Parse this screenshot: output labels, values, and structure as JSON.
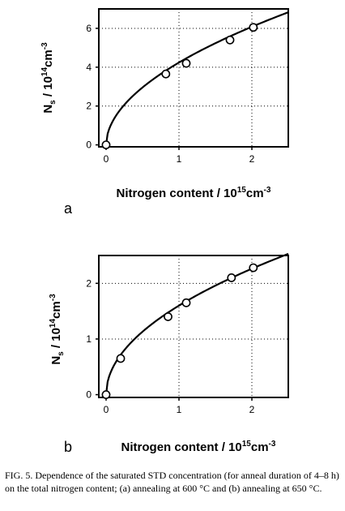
{
  "chart_data": [
    {
      "type": "scatter",
      "panel_label": "a",
      "xlabel": {
        "main": "Nitrogen content / 10",
        "exp": "15",
        "unit": "cm",
        "unit_exp": "-3"
      },
      "ylabel": {
        "main": "N",
        "sub": "s",
        "mid": " / 10",
        "exp": "14",
        "unit": "cm",
        "unit_exp": "-3"
      },
      "xlim": [
        -0.1,
        2.5
      ],
      "ylim": [
        -0.1,
        7.0
      ],
      "xticks": [
        0,
        1,
        2
      ],
      "yticks": [
        0,
        2,
        4,
        6
      ],
      "points": [
        {
          "x": 0.0,
          "y": 0.0
        },
        {
          "x": 0.82,
          "y": 3.65
        },
        {
          "x": 1.1,
          "y": 4.2
        },
        {
          "x": 1.7,
          "y": 5.4
        },
        {
          "x": 2.02,
          "y": 6.05
        }
      ],
      "fit_curve": {
        "form": "power",
        "a": 4.24,
        "p": 0.52,
        "x_max": 2.5
      }
    },
    {
      "type": "scatter",
      "panel_label": "b",
      "xlabel": {
        "main": "Nitrogen content / 10",
        "exp": "15",
        "unit": "cm",
        "unit_exp": "-3"
      },
      "ylabel": {
        "main": "N",
        "sub": "s",
        "mid": " / 10",
        "exp": "14",
        "unit": "cm",
        "unit_exp": "-3"
      },
      "xlim": [
        -0.1,
        2.5
      ],
      "ylim": [
        -0.05,
        2.5
      ],
      "xticks": [
        0,
        1,
        2
      ],
      "yticks": [
        0,
        1,
        2
      ],
      "points": [
        {
          "x": 0.0,
          "y": 0.0
        },
        {
          "x": 0.2,
          "y": 0.65
        },
        {
          "x": 0.85,
          "y": 1.4
        },
        {
          "x": 1.1,
          "y": 1.65
        },
        {
          "x": 1.72,
          "y": 2.1
        },
        {
          "x": 2.02,
          "y": 2.28
        }
      ],
      "fit_curve": {
        "form": "power",
        "a": 1.6,
        "p": 0.5,
        "x_max": 2.5
      }
    }
  ],
  "caption": "FIG. 5. Dependence of the saturated STD concentration (for anneal duration of 4–8 h) on the total nitrogen content; (a) annealing at 600 °C and (b) annealing at 650 °C."
}
